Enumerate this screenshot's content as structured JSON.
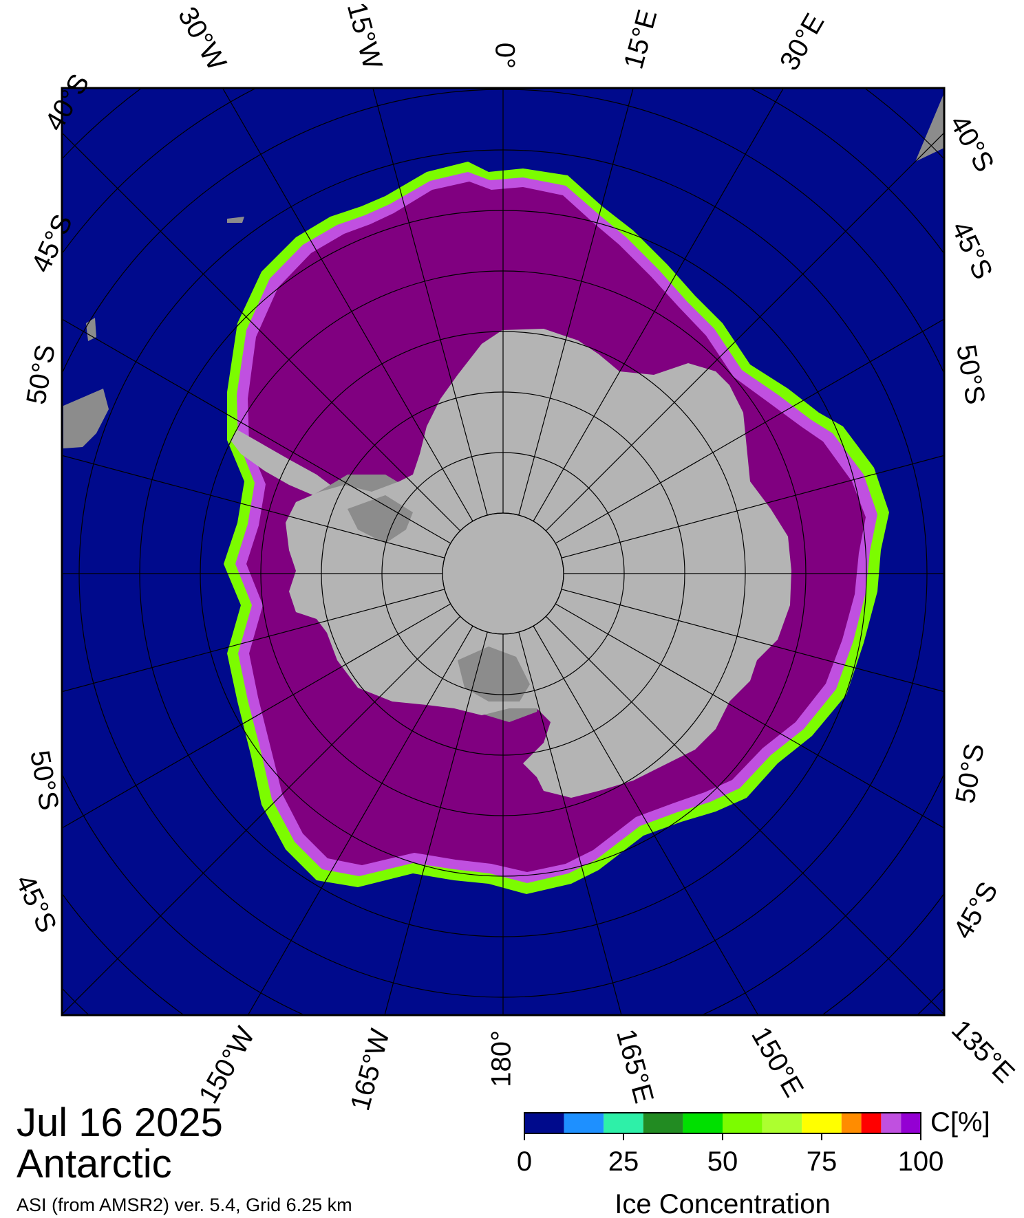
{
  "date": "Jul 16 2025",
  "region": "Antarctic",
  "source": "ASI (from AMSR2) ver. 5.4,  Grid 6.25 km",
  "colorbar": {
    "title": "Ice Concentration",
    "unit": "C[%]",
    "ticks": [
      "0",
      "25",
      "50",
      "75",
      "100"
    ],
    "range": [
      0,
      100
    ],
    "bins": [
      {
        "from": 0,
        "to": 10,
        "color": "#000a8c"
      },
      {
        "from": 10,
        "to": 20,
        "color": "#1e90ff"
      },
      {
        "from": 20,
        "to": 30,
        "color": "#2ef0a8"
      },
      {
        "from": 30,
        "to": 40,
        "color": "#228b22"
      },
      {
        "from": 40,
        "to": 50,
        "color": "#00e000"
      },
      {
        "from": 50,
        "to": 60,
        "color": "#7cfc00"
      },
      {
        "from": 60,
        "to": 70,
        "color": "#adff2f"
      },
      {
        "from": 70,
        "to": 80,
        "color": "#ffff00"
      },
      {
        "from": 80,
        "to": 85,
        "color": "#ff8c00"
      },
      {
        "from": 85,
        "to": 90,
        "color": "#ff0000"
      },
      {
        "from": 90,
        "to": 95,
        "color": "#c050e0"
      },
      {
        "from": 95,
        "to": 100,
        "color": "#9400d3"
      }
    ]
  },
  "map_colors": {
    "ocean": "#000a8c",
    "land": "#b4b4b4",
    "ice_shelf": "#8c8c8c",
    "ice_core": "#800080",
    "grid": "#000000"
  },
  "longitude_labels": {
    "top": [
      "30°W",
      "15°W",
      "0°",
      "15°E",
      "30°E"
    ],
    "bottom": [
      "150°W",
      "165°W",
      "180°",
      "165°E",
      "150°E",
      "135°E"
    ]
  },
  "latitude_labels": {
    "left": [
      "40°S",
      "45°S",
      "50°S",
      "50°S",
      "45°S"
    ],
    "right": [
      "40°S",
      "45°S",
      "50°S",
      "50°S",
      "45°S"
    ]
  }
}
